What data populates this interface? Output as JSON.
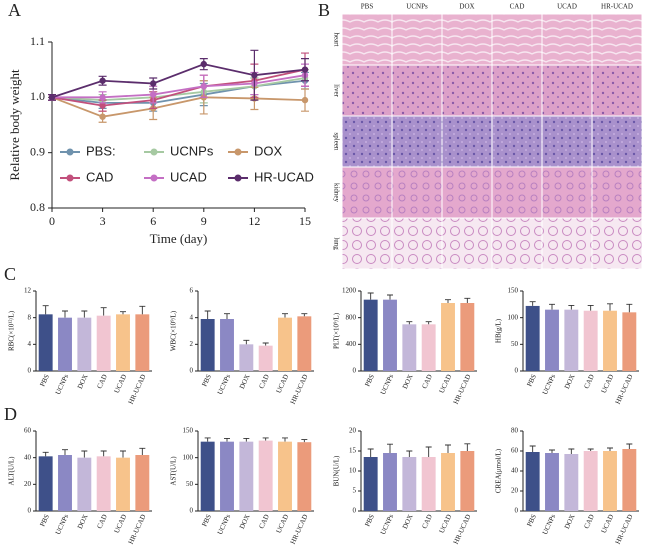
{
  "figure": {
    "panel_labels": [
      "A",
      "B",
      "C",
      "D"
    ],
    "histology": {
      "columns": [
        "PBS",
        "UCNPs",
        "DOX",
        "CAD",
        "UCAD",
        "HR-UCAD"
      ],
      "rows": [
        "heart",
        "liver",
        "spleen",
        "kidney",
        "lung"
      ]
    }
  },
  "chart_data": [
    {
      "type": "line",
      "x_label": "Time (day)",
      "y_label": "Relative body weight",
      "x": [
        0,
        3,
        6,
        9,
        12,
        15
      ],
      "xlim": [
        0,
        15
      ],
      "xticks": [
        0,
        3,
        6,
        9,
        12,
        15
      ],
      "ylim": [
        0.8,
        1.1
      ],
      "yticks": [
        0.8,
        0.9,
        {
          "value": 1,
          "label": "1.0"
        },
        1.1
      ],
      "legend": "bottom",
      "series": [
        {
          "name": "PBS:",
          "color": "#6f92ad",
          "values": [
            1,
            0.99,
            0.99,
            1.005,
            1.02,
            1.03
          ],
          "errors": [
            0.005,
            0.01,
            0.015,
            0.02,
            0.015,
            0.015
          ]
        },
        {
          "name": "UCNPs",
          "color": "#a6c9a2",
          "values": [
            1,
            0.995,
            1,
            1.01,
            1.02,
            1.035
          ],
          "errors": [
            0.005,
            0.01,
            0.01,
            0.02,
            0.015,
            0.015
          ]
        },
        {
          "name": "DOX",
          "color": "#c8976b",
          "values": [
            1,
            0.965,
            0.98,
            1,
            0.998,
            0.995
          ],
          "errors": [
            0.005,
            0.01,
            0.02,
            0.03,
            0.02,
            0.02
          ]
        },
        {
          "name": "CAD",
          "color": "#c2507c",
          "values": [
            1,
            0.985,
            0.995,
            1.02,
            1.03,
            1.05
          ],
          "errors": [
            0.005,
            0.01,
            0.015,
            0.02,
            0.03,
            0.03
          ]
        },
        {
          "name": "UCAD",
          "color": "#c46fc4",
          "values": [
            1,
            1,
            1.005,
            1.02,
            1.025,
            1.04
          ],
          "errors": [
            0.005,
            0.01,
            0.015,
            0.02,
            0.02,
            0.02
          ]
        },
        {
          "name": "HR-UCAD",
          "color": "#5b2d6c",
          "values": [
            1,
            1.03,
            1.025,
            1.06,
            1.04,
            1.05
          ],
          "errors": [
            0.005,
            0.008,
            0.01,
            0.01,
            0.045,
            0.02
          ]
        }
      ]
    },
    {
      "type": "bar",
      "y_label": "RBC(×10¹²/L)",
      "categories": [
        "PBS",
        "UCNPs",
        "DOX",
        "CAD",
        "UCAD",
        "HR-UCAD"
      ],
      "colors": [
        "#3e5089",
        "#8b88c4",
        "#c3b7d9",
        "#f1c5d1",
        "#f7c38b",
        "#eb9b7b"
      ],
      "values": [
        8.5,
        8,
        8,
        8.3,
        8.5,
        8.5
      ],
      "errors": [
        1.3,
        1,
        1,
        1.2,
        0.4,
        1.2
      ],
      "ylim": [
        0,
        12
      ],
      "yticks": [
        0,
        4,
        8,
        12
      ]
    },
    {
      "type": "bar",
      "y_label": "WBC(×10⁹/L)",
      "categories": [
        "PBS",
        "UCNPs",
        "DOX",
        "CAD",
        "UCAD",
        "HR-UCAD"
      ],
      "colors": [
        "#3e5089",
        "#8b88c4",
        "#c3b7d9",
        "#f1c5d1",
        "#f7c38b",
        "#eb9b7b"
      ],
      "values": [
        3.9,
        3.9,
        2,
        1.9,
        4,
        4.1
      ],
      "errors": [
        0.6,
        0.4,
        0.3,
        0.2,
        0.3,
        0.2
      ],
      "ylim": [
        0,
        6
      ],
      "yticks": [
        0,
        2,
        4,
        6
      ]
    },
    {
      "type": "bar",
      "y_label": "PLT(×10⁹/L)",
      "categories": [
        "PBS",
        "UCNPs",
        "DOX",
        "CAD",
        "UCAD",
        "HR-UCAD"
      ],
      "colors": [
        "#3e5089",
        "#8b88c4",
        "#c3b7d9",
        "#f1c5d1",
        "#f7c38b",
        "#eb9b7b"
      ],
      "values": [
        1070,
        1070,
        700,
        700,
        1020,
        1020
      ],
      "errors": [
        100,
        70,
        40,
        40,
        50,
        70
      ],
      "ylim": [
        0,
        1200
      ],
      "yticks": [
        0,
        400,
        800,
        1200
      ]
    },
    {
      "type": "bar",
      "y_label": "HB(g/L)",
      "categories": [
        "PBS",
        "UCNPs",
        "DOX",
        "CAD",
        "UCAD",
        "HR-UCAD"
      ],
      "colors": [
        "#3e5089",
        "#8b88c4",
        "#c3b7d9",
        "#f1c5d1",
        "#f7c38b",
        "#eb9b7b"
      ],
      "values": [
        122,
        115,
        115,
        113,
        113,
        110
      ],
      "errors": [
        8,
        10,
        8,
        10,
        13,
        15
      ],
      "ylim": [
        0,
        150
      ],
      "yticks": [
        0,
        50,
        100,
        150
      ]
    },
    {
      "type": "bar",
      "y_label": "ALT(U/L)",
      "categories": [
        "PBS",
        "UCNPs",
        "DOX",
        "CAD",
        "UCAD",
        "HR-UCAD"
      ],
      "colors": [
        "#3e5089",
        "#8b88c4",
        "#c3b7d9",
        "#f1c5d1",
        "#f7c38b",
        "#eb9b7b"
      ],
      "values": [
        41,
        42,
        40,
        41,
        40,
        42
      ],
      "errors": [
        3,
        4,
        5,
        4,
        5,
        5
      ],
      "ylim": [
        0,
        60
      ],
      "yticks": [
        0,
        20,
        40,
        60
      ]
    },
    {
      "type": "bar",
      "y_label": "AST(U/L)",
      "categories": [
        "PBS",
        "UCNPs",
        "DOX",
        "CAD",
        "UCAD",
        "HR-UCAD"
      ],
      "colors": [
        "#3e5089",
        "#8b88c4",
        "#c3b7d9",
        "#f1c5d1",
        "#f7c38b",
        "#eb9b7b"
      ],
      "values": [
        130,
        130,
        130,
        132,
        130,
        129
      ],
      "errors": [
        7,
        6,
        6,
        5,
        7,
        5
      ],
      "ylim": [
        0,
        150
      ],
      "yticks": [
        0,
        50,
        100,
        150
      ]
    },
    {
      "type": "bar",
      "y_label": "BUN(U/L)",
      "categories": [
        "PBS",
        "UCNPs",
        "DOX",
        "CAD",
        "UCAD",
        "HR-UCAD"
      ],
      "colors": [
        "#3e5089",
        "#8b88c4",
        "#c3b7d9",
        "#f1c5d1",
        "#f7c38b",
        "#eb9b7b"
      ],
      "values": [
        13.5,
        14.5,
        13.5,
        13.5,
        14.5,
        15
      ],
      "errors": [
        2,
        2.2,
        1.5,
        2.5,
        2,
        1.8
      ],
      "ylim": [
        0,
        20
      ],
      "yticks": [
        0,
        5,
        10,
        15,
        20
      ]
    },
    {
      "type": "bar",
      "y_label": "CREA(μmol/L)",
      "categories": [
        "PBS",
        "UCNPs",
        "DOX",
        "CAD",
        "UCAD",
        "HR-UCAD"
      ],
      "colors": [
        "#3e5089",
        "#8b88c4",
        "#c3b7d9",
        "#f1c5d1",
        "#f7c38b",
        "#eb9b7b"
      ],
      "values": [
        59,
        58,
        57,
        60,
        60,
        62
      ],
      "errors": [
        6,
        3,
        5,
        2,
        3,
        5
      ],
      "ylim": [
        0,
        80
      ],
      "yticks": [
        0,
        20,
        40,
        60,
        80
      ]
    }
  ]
}
